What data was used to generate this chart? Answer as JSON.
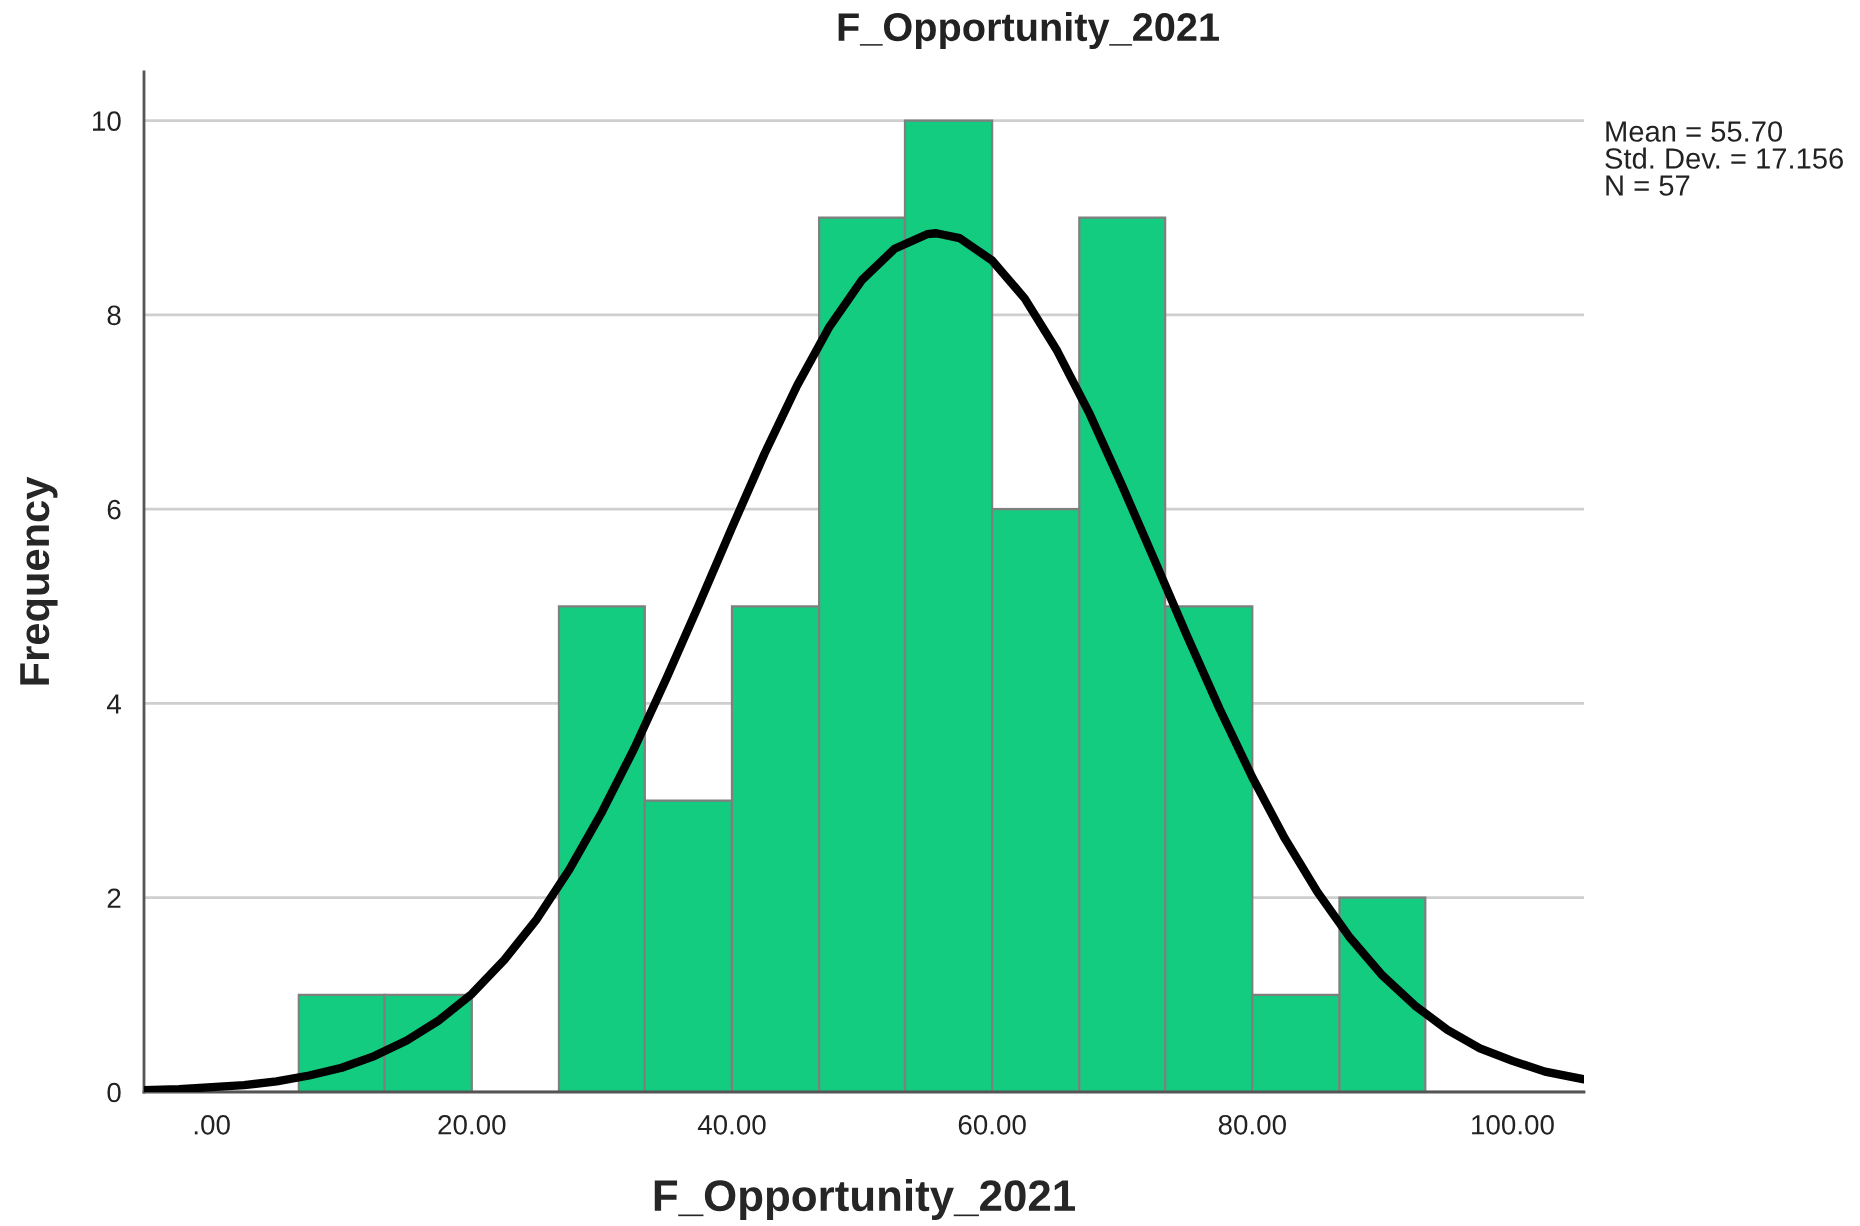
{
  "chart_data": {
    "type": "histogram",
    "title": "F_Opportunity_2021",
    "xlabel": "F_Opportunity_2021",
    "ylabel": "Frequency",
    "bins": [
      6.7,
      13.3,
      20,
      26.7,
      33.3,
      40,
      46.7,
      53.3,
      60,
      66.7,
      73.3,
      80,
      86.7,
      93.3
    ],
    "values": [
      1,
      1,
      0,
      5,
      3,
      5,
      9,
      10,
      6,
      9,
      5,
      1,
      2
    ],
    "color": "#14cc80",
    "series": [
      {
        "type": "line",
        "color": "#000000",
        "x": [
          -5.2,
          -2.5,
          0,
          2.5,
          5,
          7.5,
          10,
          12.5,
          15,
          17.5,
          20,
          22.5,
          25,
          27.5,
          30,
          32.5,
          35,
          37.5,
          40,
          42.5,
          45,
          47.5,
          50,
          52.5,
          55,
          55.7,
          57.5,
          60,
          62.5,
          65,
          67.5,
          70,
          72.5,
          75,
          77.5,
          80,
          82.5,
          85,
          87.5,
          90,
          92.5,
          95,
          97.5,
          100,
          102.5,
          105.5
        ],
        "values": [
          0.02,
          0.03,
          0.05,
          0.07,
          0.11,
          0.17,
          0.25,
          0.37,
          0.53,
          0.74,
          1.01,
          1.36,
          1.78,
          2.29,
          2.88,
          3.54,
          4.27,
          5.03,
          5.81,
          6.57,
          7.27,
          7.88,
          8.36,
          8.68,
          8.83,
          8.84,
          8.79,
          8.56,
          8.17,
          7.63,
          6.98,
          6.24,
          5.47,
          4.69,
          3.94,
          3.24,
          2.61,
          2.06,
          1.59,
          1.2,
          0.89,
          0.64,
          0.45,
          0.32,
          0.21,
          0.13
        ]
      }
    ],
    "xlim": [
      -5.2,
      105.5
    ],
    "ylim": [
      0,
      10.5
    ],
    "xticks": [
      {
        "value": 0,
        "label": ".00"
      },
      {
        "value": 20,
        "label": "20.00"
      },
      {
        "value": 40,
        "label": "40.00"
      },
      {
        "value": 60,
        "label": "60.00"
      },
      {
        "value": 80,
        "label": "80.00"
      },
      {
        "value": 100,
        "label": "100.00"
      }
    ],
    "yticks": [
      0,
      2,
      4,
      6,
      8,
      10
    ],
    "grid": "y",
    "legend": false,
    "annotations": [
      "Mean = 55.70",
      "Std. Dev. = 17.156",
      "N = 57"
    ]
  }
}
